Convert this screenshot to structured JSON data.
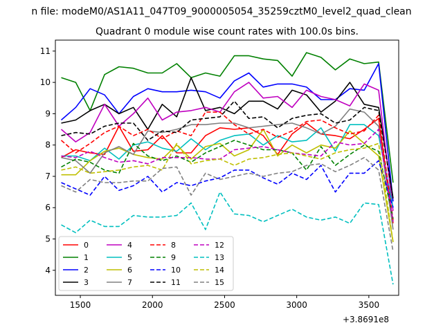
{
  "chart_data": {
    "type": "line",
    "suptitle": "n file: modeM0/AS1A11_047T09_9000005054_35259cztM0_level2_quad_clean",
    "title": "Quadrant 0 module wise count rates with 100.0s bins.",
    "xlabel": "",
    "ylabel": "",
    "x_offset_label": "+3.8691e8",
    "xlim": [
      1327,
      3707
    ],
    "ylim": [
      3.2,
      11.35
    ],
    "xticks": [
      1500,
      2000,
      2500,
      3000,
      3500
    ],
    "yticks": [
      4,
      5,
      6,
      7,
      8,
      9,
      10,
      11
    ],
    "grid": false,
    "legend": {
      "placement": "lower-left",
      "columns": 4
    },
    "x": [
      1368,
      1468,
      1568,
      1668,
      1768,
      1868,
      1968,
      2068,
      2168,
      2268,
      2368,
      2468,
      2568,
      2668,
      2768,
      2868,
      2968,
      3068,
      3168,
      3268,
      3368,
      3468,
      3568,
      3668
    ],
    "series": [
      {
        "name": "0",
        "color": "#ff0000",
        "dash": "solid",
        "values": [
          7.6,
          7.85,
          7.75,
          7.7,
          8.6,
          7.8,
          7.85,
          8.3,
          7.75,
          7.75,
          8.3,
          8.55,
          8.5,
          8.55,
          8.3,
          7.7,
          8.35,
          8.7,
          8.35,
          8.3,
          8.2,
          8.5,
          8.85,
          5.5
        ]
      },
      {
        "name": "1",
        "color": "#008000",
        "dash": "solid",
        "values": [
          10.15,
          10.0,
          9.1,
          10.25,
          10.5,
          10.45,
          10.3,
          10.3,
          10.6,
          10.15,
          10.3,
          10.2,
          10.85,
          10.85,
          10.75,
          10.7,
          10.2,
          10.95,
          10.8,
          10.4,
          10.75,
          10.6,
          10.65,
          6.8
        ]
      },
      {
        "name": "2",
        "color": "#0000ff",
        "dash": "solid",
        "values": [
          8.8,
          9.2,
          9.8,
          9.6,
          9.0,
          9.55,
          9.8,
          9.7,
          9.7,
          9.75,
          9.7,
          9.5,
          10.05,
          10.3,
          9.85,
          9.95,
          9.95,
          9.85,
          9.45,
          9.45,
          9.8,
          9.75,
          10.6,
          6.2
        ]
      },
      {
        "name": "3",
        "color": "#000000",
        "dash": "solid",
        "values": [
          8.7,
          8.8,
          9.1,
          9.3,
          9.0,
          9.2,
          8.5,
          9.3,
          8.9,
          10.15,
          9.1,
          9.2,
          9.0,
          9.4,
          9.4,
          9.15,
          9.75,
          9.6,
          9.05,
          9.4,
          10.0,
          9.3,
          9.2,
          6.3
        ]
      },
      {
        "name": "4",
        "color": "#bf00bf",
        "dash": "solid",
        "values": [
          8.5,
          8.1,
          8.4,
          9.3,
          8.6,
          9.0,
          9.5,
          8.8,
          9.05,
          9.1,
          9.2,
          9.05,
          9.7,
          10.0,
          9.5,
          9.55,
          9.2,
          9.75,
          9.55,
          9.45,
          9.25,
          9.95,
          9.75,
          5.9
        ]
      },
      {
        "name": "5",
        "color": "#00bfbf",
        "dash": "solid",
        "values": [
          7.65,
          7.65,
          7.5,
          7.9,
          7.55,
          8.0,
          8.1,
          7.9,
          7.8,
          8.2,
          7.85,
          8.15,
          8.3,
          8.35,
          8.0,
          8.3,
          8.1,
          8.15,
          8.55,
          7.8,
          8.65,
          8.65,
          8.3,
          6.0
        ]
      },
      {
        "name": "6",
        "color": "#bfbf00",
        "dash": "solid",
        "values": [
          7.05,
          7.05,
          7.5,
          7.8,
          7.9,
          7.7,
          7.6,
          7.55,
          8.0,
          7.55,
          7.95,
          8.05,
          7.65,
          7.85,
          8.5,
          7.65,
          8.0,
          7.75,
          8.0,
          7.9,
          8.45,
          8.05,
          7.65,
          4.9
        ]
      },
      {
        "name": "7",
        "color": "#808080",
        "dash": "solid",
        "values": [
          7.6,
          7.5,
          7.1,
          7.75,
          7.95,
          7.7,
          8.45,
          8.4,
          8.5,
          8.65,
          8.65,
          8.7,
          8.7,
          8.55,
          8.6,
          8.65,
          8.7,
          8.55,
          8.35,
          8.6,
          9.15,
          9.05,
          8.6,
          5.3
        ]
      },
      {
        "name": "8",
        "color": "#ff0000",
        "dash": "dashed",
        "values": [
          8.15,
          7.75,
          8.05,
          8.4,
          8.6,
          8.3,
          8.5,
          8.2,
          8.45,
          8.3,
          9.05,
          9.05,
          8.65,
          8.35,
          8.5,
          8.25,
          8.45,
          8.75,
          8.8,
          8.55,
          8.35,
          8.45,
          8.95,
          5.6
        ]
      },
      {
        "name": "9",
        "color": "#008000",
        "dash": "dashed",
        "values": [
          7.3,
          7.55,
          7.45,
          7.2,
          7.1,
          8.05,
          7.65,
          7.5,
          7.65,
          7.45,
          7.75,
          7.95,
          8.15,
          8.0,
          7.85,
          7.85,
          7.75,
          7.2,
          7.95,
          7.35,
          7.7,
          8.0,
          7.8,
          5.65
        ]
      },
      {
        "name": "10",
        "color": "#0000ff",
        "dash": "dashed",
        "values": [
          6.8,
          6.6,
          6.4,
          7.0,
          6.55,
          6.7,
          7.0,
          6.5,
          6.8,
          6.7,
          6.85,
          6.95,
          7.2,
          7.2,
          6.95,
          6.75,
          7.1,
          6.9,
          7.35,
          6.5,
          7.1,
          7.1,
          7.5,
          6.0
        ]
      },
      {
        "name": "11",
        "color": "#000000",
        "dash": "dashed",
        "values": [
          8.3,
          8.4,
          8.35,
          8.6,
          8.7,
          8.7,
          8.15,
          8.45,
          8.4,
          8.8,
          8.85,
          8.9,
          9.4,
          8.85,
          8.9,
          8.55,
          8.85,
          8.95,
          9.0,
          8.7,
          8.8,
          9.2,
          9.1,
          6.3
        ]
      },
      {
        "name": "12",
        "color": "#bf00bf",
        "dash": "dashed",
        "values": [
          7.65,
          7.6,
          7.8,
          7.6,
          7.45,
          7.5,
          7.4,
          7.6,
          7.6,
          7.6,
          7.55,
          7.55,
          7.85,
          7.9,
          7.95,
          7.85,
          7.75,
          7.7,
          7.65,
          8.1,
          8.0,
          8.05,
          8.5,
          5.55
        ]
      },
      {
        "name": "13",
        "color": "#00bfbf",
        "dash": "dashed",
        "values": [
          5.45,
          5.2,
          5.6,
          5.4,
          5.4,
          5.75,
          5.7,
          5.7,
          5.75,
          6.15,
          5.3,
          6.5,
          5.8,
          5.75,
          5.55,
          5.75,
          5.95,
          5.7,
          5.6,
          5.7,
          5.5,
          6.15,
          6.1,
          3.55
        ]
      },
      {
        "name": "14",
        "color": "#bfbf00",
        "dash": "dashed",
        "values": [
          7.2,
          7.3,
          7.1,
          7.15,
          7.2,
          7.3,
          7.35,
          7.2,
          8.05,
          7.4,
          7.5,
          7.55,
          7.35,
          7.55,
          7.6,
          7.7,
          7.75,
          7.65,
          7.55,
          7.75,
          7.85,
          7.9,
          8.05,
          4.9
        ]
      },
      {
        "name": "15",
        "color": "#808080",
        "dash": "dashed",
        "values": [
          6.7,
          6.5,
          6.9,
          6.8,
          6.8,
          6.85,
          6.85,
          7.25,
          7.3,
          6.4,
          7.1,
          6.9,
          7.0,
          7.1,
          7.0,
          7.1,
          7.15,
          7.35,
          7.4,
          7.15,
          7.35,
          7.6,
          7.2,
          4.6
        ]
      }
    ]
  }
}
